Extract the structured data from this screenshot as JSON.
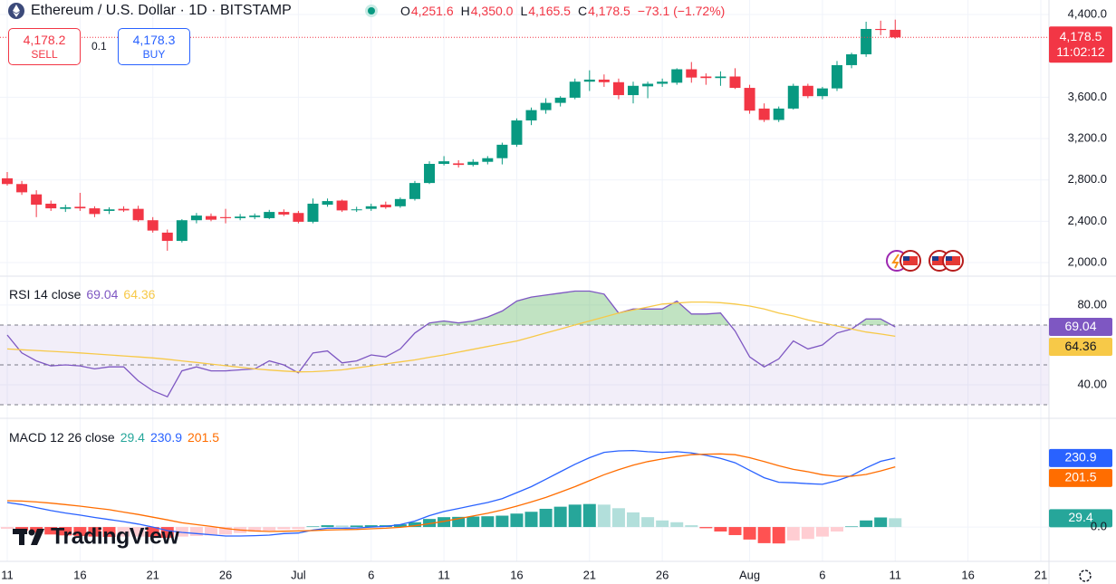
{
  "header": {
    "symbol": "Ethereum / U.S. Dollar · 1D · BITSTAMP",
    "legend": {
      "open_label": "O",
      "open": "4,251.6",
      "high_label": "H",
      "high": "4,350.0",
      "low_label": "L",
      "low": "4,165.5",
      "close_label": "C",
      "close": "4,178.5",
      "change": "−73.1 (−1.72%)"
    },
    "countdown": "11:02:12"
  },
  "trade": {
    "sell_price": "4,178.2",
    "sell": "SELL",
    "quantity": "0.1",
    "buy_price": "4,178.3",
    "buy": "BUY"
  },
  "watermark": "TradingView",
  "chart_data": [
    {
      "type": "candlestick",
      "up_color": "#089981",
      "down_color": "#f23645",
      "categories": [
        "11",
        null,
        null,
        null,
        null,
        "16",
        null,
        null,
        null,
        null,
        "21",
        null,
        null,
        null,
        null,
        "26",
        null,
        null,
        null,
        null,
        "Jul",
        null,
        null,
        null,
        null,
        "6",
        null,
        null,
        null,
        null,
        "11",
        null,
        null,
        null,
        null,
        "16",
        null,
        null,
        null,
        null,
        "21",
        null,
        null,
        null,
        null,
        "26",
        null,
        null,
        null,
        null,
        null,
        "Aug",
        null,
        null,
        null,
        null,
        "6",
        null,
        null,
        null,
        null,
        "11",
        null,
        null,
        null,
        null,
        "16",
        null,
        null,
        null,
        null,
        "21"
      ],
      "open": [
        2815,
        2760,
        2660,
        2570,
        2520,
        2540,
        2525,
        2500,
        2520,
        2520,
        2410,
        2290,
        2210,
        2410,
        2450,
        2440,
        2430,
        2440,
        2430,
        2490,
        2480,
        2395,
        2560,
        2600,
        2510,
        2520,
        2560,
        2545,
        2615,
        2770,
        2955,
        2960,
        2945,
        2975,
        3010,
        3140,
        3375,
        3475,
        3545,
        3595,
        3750,
        3770,
        3745,
        3620,
        3705,
        3730,
        3740,
        3870,
        3800,
        3785,
        3800,
        3690,
        3490,
        3380,
        3490,
        3710,
        3610,
        3685,
        3910,
        4015,
        4260,
        4251.6,
        null,
        null,
        null,
        null,
        null,
        null,
        null,
        null,
        null,
        null
      ],
      "high": [
        2876,
        2790,
        2700,
        2600,
        2560,
        2675,
        2545,
        2535,
        2545,
        2550,
        2440,
        2320,
        2420,
        2480,
        2475,
        2520,
        2470,
        2475,
        2510,
        2515,
        2500,
        2620,
        2620,
        2610,
        2540,
        2570,
        2590,
        2630,
        2790,
        2980,
        3030,
        2990,
        3000,
        3030,
        3160,
        3395,
        3500,
        3590,
        3610,
        3780,
        3860,
        3820,
        3780,
        3750,
        3750,
        3780,
        3880,
        3940,
        3830,
        3850,
        3880,
        3720,
        3540,
        3510,
        3730,
        3730,
        3700,
        3950,
        4030,
        4330,
        4340,
        4350,
        null,
        null,
        null,
        null,
        null,
        null,
        null,
        null,
        null,
        null
      ],
      "low": [
        2745,
        2655,
        2440,
        2500,
        2490,
        2500,
        2440,
        2470,
        2490,
        2395,
        2290,
        2115,
        2195,
        2380,
        2400,
        2380,
        2410,
        2420,
        2420,
        2450,
        2380,
        2380,
        2540,
        2490,
        2490,
        2500,
        2520,
        2530,
        2600,
        2760,
        2940,
        2920,
        2930,
        2950,
        2950,
        3120,
        3330,
        3440,
        3510,
        3580,
        3660,
        3700,
        3580,
        3540,
        3590,
        3700,
        3720,
        3740,
        3720,
        3710,
        3680,
        3440,
        3360,
        3360,
        3480,
        3590,
        3580,
        3660,
        3880,
        3990,
        4200,
        4165.5,
        null,
        null,
        null,
        null,
        null,
        null,
        null,
        null,
        null,
        null
      ],
      "close": [
        2760,
        2680,
        2560,
        2525,
        2535,
        2525,
        2470,
        2515,
        2505,
        2410,
        2310,
        2210,
        2410,
        2455,
        2415,
        2430,
        2445,
        2455,
        2490,
        2465,
        2395,
        2570,
        2595,
        2505,
        2515,
        2545,
        2535,
        2615,
        2770,
        2955,
        2980,
        2945,
        2975,
        3010,
        3140,
        3375,
        3475,
        3545,
        3595,
        3750,
        3770,
        3745,
        3620,
        3710,
        3730,
        3750,
        3870,
        3790,
        3785,
        3800,
        3690,
        3470,
        3380,
        3490,
        3710,
        3610,
        3685,
        3910,
        4015,
        4260,
        4250,
        4178.5,
        null,
        null,
        null,
        null,
        null,
        null,
        null,
        null,
        null,
        null
      ],
      "ylim": [
        1869,
        4540
      ],
      "yticks": [
        {
          "value": 4400,
          "label": "4,400.0"
        },
        {
          "value": 3600,
          "label": "3,600.0"
        },
        {
          "value": 3200,
          "label": "3,200.0"
        },
        {
          "value": 2800,
          "label": "2,800.0"
        },
        {
          "value": 2400,
          "label": "2,400.0"
        },
        {
          "value": 2000,
          "label": "2,000.0"
        }
      ],
      "grid": true
    },
    {
      "type": "line",
      "title": "RSI 14 close",
      "band": {
        "upper": 70,
        "middle": 50,
        "lower": 30,
        "color": "#7e57c2",
        "overbought_color": "#4caf50"
      },
      "series": [
        {
          "color": "#7e57c2",
          "values": [
            65,
            56,
            52,
            49.5,
            50,
            49.5,
            48,
            49,
            49,
            42,
            37,
            34,
            47,
            49,
            47,
            47,
            47.5,
            48,
            52,
            50,
            46,
            56,
            57,
            51,
            52,
            55,
            54,
            58,
            66,
            71,
            72,
            71,
            72,
            74,
            77,
            82,
            84,
            85,
            86,
            87,
            87,
            85.5,
            76,
            78,
            78,
            78,
            82,
            75.5,
            75.5,
            76,
            67,
            54,
            49,
            53,
            62,
            58,
            60,
            66,
            68,
            73,
            73,
            69.04,
            null,
            null,
            null,
            null,
            null,
            null,
            null,
            null,
            null,
            null
          ]
        },
        {
          "color": "#f7c948",
          "values": [
            58,
            57.6,
            57.2,
            56.8,
            56.4,
            56,
            55.5,
            55,
            54.5,
            54,
            53.5,
            52.8,
            52,
            51.2,
            50.4,
            49.6,
            48.8,
            48,
            47.4,
            46.9,
            46.5,
            46.6,
            47,
            47.5,
            48.5,
            49.5,
            50.5,
            51.5,
            52.5,
            53.8,
            55,
            56.4,
            57.8,
            59.2,
            60.6,
            62,
            64,
            66,
            68,
            70,
            72,
            74,
            76,
            77.5,
            79,
            80.5,
            81,
            81.5,
            81.5,
            81.2,
            80.5,
            79.5,
            78,
            76,
            74.5,
            72.5,
            71,
            69.5,
            68,
            66.5,
            65.5,
            64.36,
            null,
            null,
            null,
            null,
            null,
            null,
            null,
            null,
            null,
            null
          ]
        }
      ],
      "ylim": [
        23.2,
        94.5
      ],
      "yticks": [
        {
          "value": 80,
          "label": "80.00"
        },
        {
          "value": 40,
          "label": "40.00"
        }
      ],
      "grid": true
    },
    {
      "type": "combo",
      "title": "MACD 12 26 close",
      "series": [
        {
          "type": "bar",
          "colors": [
            "#26a69a",
            "#b2dfdb",
            "#ff5252",
            "#ffcdd2"
          ],
          "color": "#26a69a",
          "values": [
            -6,
            -12,
            -19,
            -25,
            -28,
            -30,
            -32,
            -33,
            -32,
            -32,
            -33,
            -36,
            -32,
            -30,
            -28,
            -25,
            -20,
            -16,
            -12,
            -8,
            -7,
            2,
            6,
            5,
            5,
            6,
            6,
            9,
            16,
            27,
            33,
            34,
            35,
            36,
            38,
            45,
            51,
            61,
            68,
            75,
            77,
            75,
            63,
            49,
            33,
            22,
            16,
            6,
            -4,
            -15,
            -27,
            -42,
            -54,
            -55,
            -45,
            -40,
            -32,
            -15,
            2,
            22,
            32,
            29.4,
            null,
            null,
            null,
            null,
            null,
            null,
            null,
            null,
            null,
            null
          ]
        },
        {
          "type": "line",
          "color": "#2962ff",
          "values": [
            82,
            75,
            65,
            55,
            47,
            40,
            32,
            25,
            18,
            10,
            0,
            -12,
            -18,
            -22,
            -26,
            -30,
            -30,
            -29,
            -27,
            -22,
            -20,
            -10,
            -4,
            -4,
            -3,
            0,
            2,
            8,
            20,
            38,
            52,
            62,
            72,
            82,
            95,
            115,
            135,
            160,
            185,
            210,
            232,
            250,
            255,
            256,
            252,
            250,
            252,
            248,
            240,
            230,
            215,
            190,
            165,
            150,
            148,
            145,
            143,
            155,
            172,
            198,
            220,
            230.9,
            null,
            null,
            null,
            null,
            null,
            null,
            null,
            null,
            null,
            null
          ]
        },
        {
          "type": "line",
          "color": "#ff6d00",
          "values": [
            88,
            87,
            84,
            80,
            75,
            70,
            64,
            58,
            50,
            42,
            33,
            24,
            14,
            8,
            2,
            -5,
            -10,
            -13,
            -15,
            -14,
            -13,
            -12,
            -10,
            -9,
            -8,
            -6,
            -4,
            -1,
            4,
            11,
            19,
            28,
            37,
            46,
            57,
            70,
            84,
            99,
            117,
            135,
            155,
            175,
            192,
            207,
            219,
            228,
            236,
            242,
            244,
            245,
            242,
            232,
            219,
            205,
            193,
            185,
            175,
            170,
            170,
            176,
            188,
            201.5,
            null,
            null,
            null,
            null,
            null,
            null,
            null,
            null,
            null,
            null
          ]
        }
      ],
      "ylim": [
        -115,
        364
      ],
      "yticks": [
        {
          "value": 0,
          "label": "0.0"
        }
      ],
      "grid": true
    }
  ]
}
